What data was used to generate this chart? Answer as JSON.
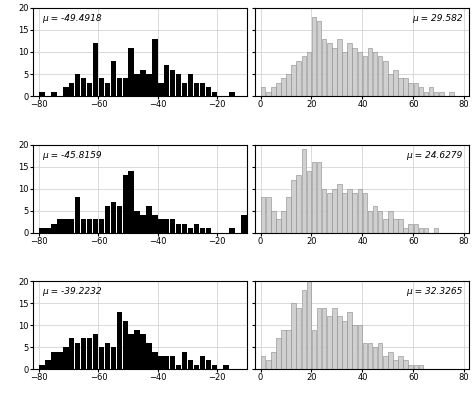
{
  "rows": 3,
  "ylim": [
    0,
    20
  ],
  "yticks": [
    0,
    5,
    10,
    15,
    20
  ],
  "left_xticks": [
    -80,
    -60,
    -40,
    -20
  ],
  "right_xticks": [
    0,
    20,
    40,
    60,
    80
  ],
  "left_mu": [
    "μ = -49.4918",
    "μ = -45.8159",
    "μ = -39.2232"
  ],
  "right_mu": [
    "μ = 29.582",
    "μ = 24.6279",
    "μ = 32.3265"
  ],
  "bar_width": 1.8,
  "left_color": "#000000",
  "right_color": "#d0d0d0",
  "right_edge_color": "#888888",
  "grid_color": "#cccccc",
  "bg_color": "#ffffff",
  "left_xlim": [
    -82,
    -10
  ],
  "right_xlim": [
    -2,
    82
  ],
  "left_bins_row1": [
    -79,
    -77,
    -75,
    -73,
    -71,
    -69,
    -67,
    -65,
    -63,
    -61,
    -59,
    -57,
    -55,
    -53,
    -51,
    -49,
    -47,
    -45,
    -43,
    -41,
    -39,
    -37,
    -35,
    -33,
    -31,
    -29,
    -27,
    -25,
    -23,
    -21,
    -19,
    -17,
    -15,
    -13
  ],
  "left_vals_row1": [
    1,
    0,
    1,
    0,
    2,
    3,
    5,
    4,
    3,
    12,
    4,
    3,
    8,
    4,
    4,
    11,
    5,
    6,
    5,
    13,
    3,
    7,
    6,
    5,
    3,
    5,
    3,
    3,
    2,
    1,
    0,
    0,
    1,
    0
  ],
  "right_bins_row1": [
    1,
    3,
    5,
    7,
    9,
    11,
    13,
    15,
    17,
    19,
    21,
    23,
    25,
    27,
    29,
    31,
    33,
    35,
    37,
    39,
    41,
    43,
    45,
    47,
    49,
    51,
    53,
    55,
    57,
    59,
    61,
    63,
    65,
    67,
    69,
    71,
    73,
    75,
    77,
    79
  ],
  "right_vals_row1": [
    2,
    1,
    2,
    3,
    4,
    5,
    7,
    8,
    9,
    10,
    18,
    17,
    13,
    12,
    11,
    13,
    10,
    12,
    11,
    10,
    9,
    11,
    10,
    9,
    8,
    5,
    6,
    4,
    4,
    3,
    3,
    2,
    1,
    2,
    1,
    1,
    0,
    1,
    0,
    0
  ],
  "left_bins_row2": [
    -79,
    -77,
    -75,
    -73,
    -71,
    -69,
    -67,
    -65,
    -63,
    -61,
    -59,
    -57,
    -55,
    -53,
    -51,
    -49,
    -47,
    -45,
    -43,
    -41,
    -39,
    -37,
    -35,
    -33,
    -31,
    -29,
    -27,
    -25,
    -23,
    -21,
    -19,
    -17,
    -15,
    -13,
    -11,
    -9,
    -7,
    -5
  ],
  "left_vals_row2": [
    1,
    1,
    2,
    3,
    3,
    3,
    8,
    3,
    3,
    3,
    3,
    6,
    7,
    6,
    13,
    14,
    5,
    4,
    6,
    4,
    3,
    3,
    3,
    2,
    2,
    1,
    2,
    1,
    1,
    0,
    0,
    0,
    1,
    0,
    4,
    1,
    0,
    0
  ],
  "right_bins_row2": [
    1,
    3,
    5,
    7,
    9,
    11,
    13,
    15,
    17,
    19,
    21,
    23,
    25,
    27,
    29,
    31,
    33,
    35,
    37,
    39,
    41,
    43,
    45,
    47,
    49,
    51,
    53,
    55,
    57,
    59,
    61,
    63,
    65,
    67,
    69,
    71,
    73,
    75,
    77,
    79
  ],
  "right_vals_row2": [
    8,
    8,
    5,
    3,
    5,
    8,
    12,
    13,
    19,
    14,
    16,
    16,
    10,
    9,
    10,
    11,
    9,
    10,
    9,
    10,
    9,
    5,
    6,
    5,
    3,
    5,
    3,
    3,
    1,
    2,
    2,
    1,
    1,
    0,
    1,
    0,
    0,
    0,
    0,
    0
  ],
  "left_bins_row3": [
    -79,
    -77,
    -75,
    -73,
    -71,
    -69,
    -67,
    -65,
    -63,
    -61,
    -59,
    -57,
    -55,
    -53,
    -51,
    -49,
    -47,
    -45,
    -43,
    -41,
    -39,
    -37,
    -35,
    -33,
    -31,
    -29,
    -27,
    -25,
    -23,
    -21,
    -19,
    -17,
    -15,
    -13,
    -11,
    -9
  ],
  "left_vals_row3": [
    1,
    2,
    4,
    4,
    5,
    7,
    6,
    7,
    7,
    8,
    5,
    6,
    5,
    13,
    11,
    8,
    9,
    8,
    6,
    4,
    3,
    3,
    3,
    1,
    4,
    2,
    1,
    3,
    2,
    1,
    0,
    1,
    0,
    0,
    0,
    0
  ],
  "right_bins_row3": [
    1,
    3,
    5,
    7,
    9,
    11,
    13,
    15,
    17,
    19,
    21,
    23,
    25,
    27,
    29,
    31,
    33,
    35,
    37,
    39,
    41,
    43,
    45,
    47,
    49,
    51,
    53,
    55,
    57,
    59,
    61,
    63,
    65,
    67,
    69,
    71,
    73,
    75,
    77,
    79
  ],
  "right_vals_row3": [
    3,
    2,
    4,
    7,
    9,
    9,
    15,
    14,
    18,
    20,
    9,
    14,
    14,
    12,
    14,
    12,
    11,
    13,
    10,
    10,
    6,
    6,
    5,
    6,
    3,
    4,
    2,
    3,
    2,
    1,
    1,
    1,
    0,
    0,
    0,
    0,
    0,
    0,
    0,
    0
  ],
  "fontsize_mu": 6.5,
  "fontsize_tick": 6
}
